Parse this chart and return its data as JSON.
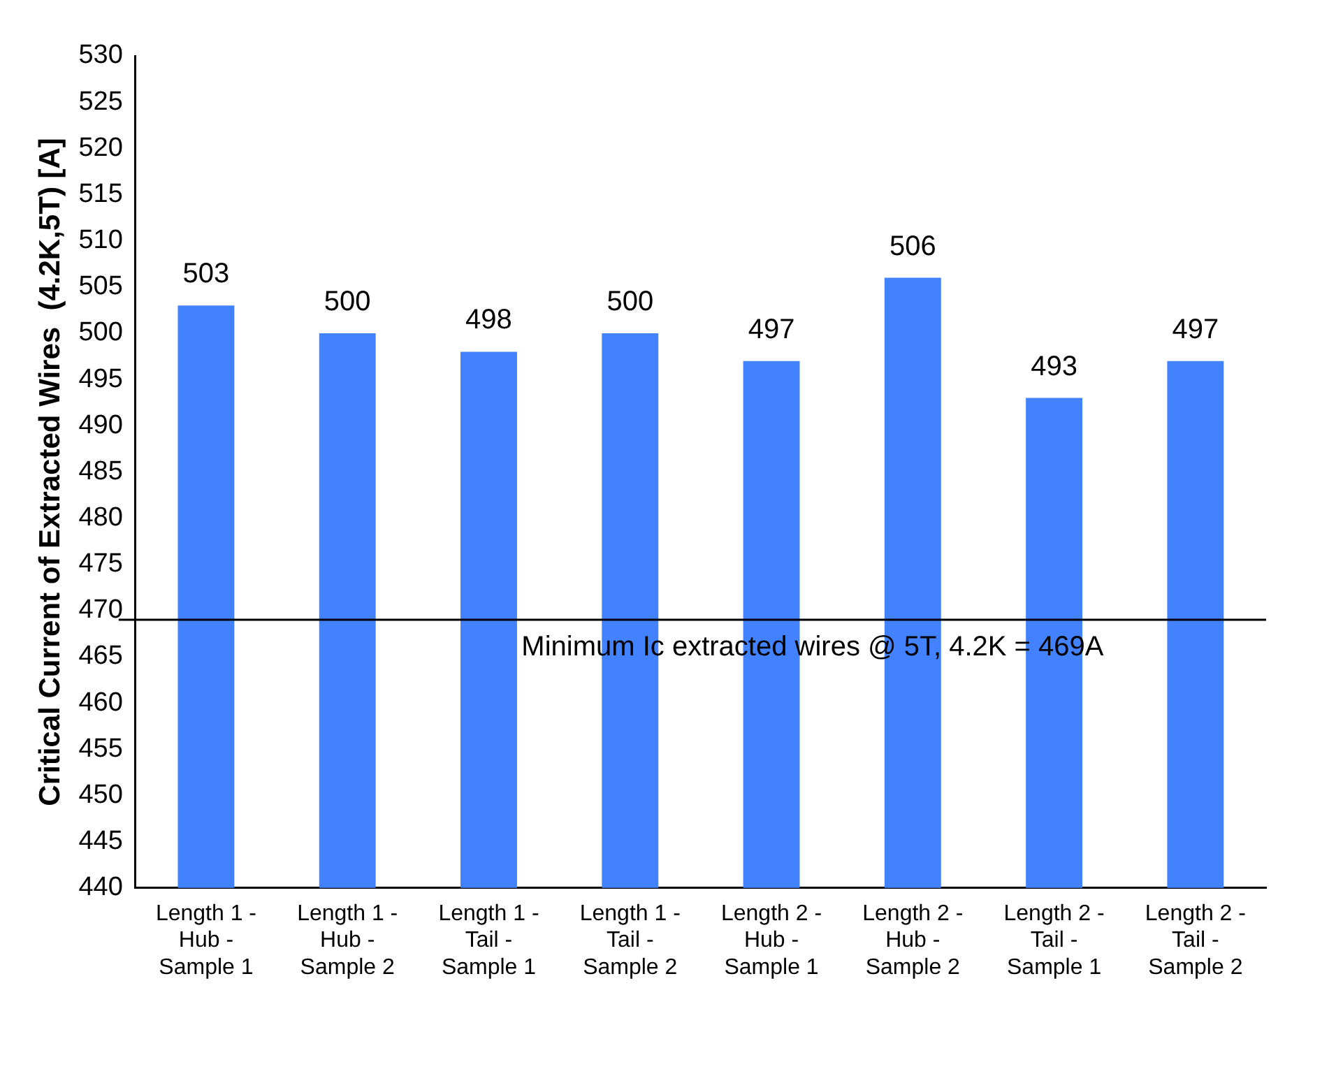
{
  "chart_data": {
    "type": "bar",
    "ylabel": "Critical Current of Extracted Wires  (4.2K,5T) [A]",
    "categories": [
      "Length 1 - Hub - Sample 1",
      "Length 1 - Hub - Sample 2",
      "Length 1 - Tail - Sample 1",
      "Length 1 - Tail - Sample 2",
      "Length 2 - Hub - Sample 1",
      "Length 2 - Hub - Sample 2",
      "Length 2 - Tail - Sample 1",
      "Length 2 - Tail - Sample 2"
    ],
    "values": [
      503,
      500,
      498,
      500,
      497,
      506,
      493,
      497
    ],
    "color": "#4282ff",
    "ylim": [
      440,
      530
    ],
    "yticks": [
      440,
      445,
      450,
      455,
      460,
      465,
      470,
      475,
      480,
      485,
      490,
      495,
      500,
      505,
      510,
      515,
      520,
      525,
      530
    ],
    "grid": false,
    "legend": false,
    "data_labels": true,
    "ref_lines": [
      {
        "axis": "y",
        "value": 469,
        "label": "Minimum Ic extracted wires @ 5T, 4.2K = 469A",
        "color": "#000000"
      }
    ]
  }
}
